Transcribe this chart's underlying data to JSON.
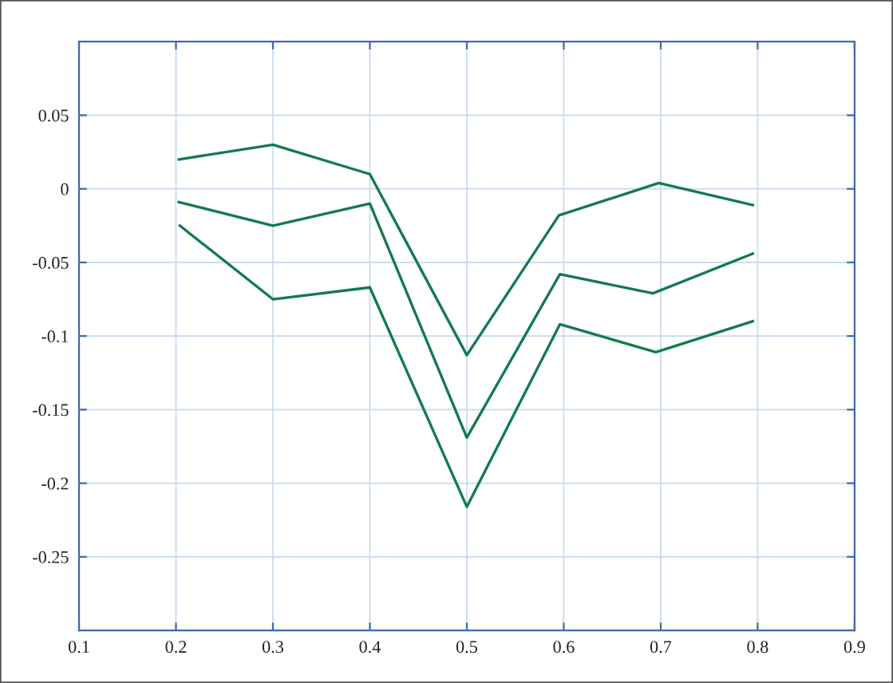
{
  "chart_data": {
    "type": "line",
    "series": [
      {
        "color": "#137a4f",
        "x": [
          0.203,
          0.3,
          0.4,
          0.5,
          0.595,
          0.698,
          0.795
        ],
        "values": [
          0.02,
          0.03,
          0.01,
          -0.113,
          -0.018,
          0.004,
          -0.011
        ]
      },
      {
        "color": "#137a4f",
        "x": [
          0.203,
          0.3,
          0.4,
          0.5,
          0.596,
          0.692,
          0.795
        ],
        "values": [
          -0.009,
          -0.025,
          -0.01,
          -0.169,
          -0.058,
          -0.071,
          -0.044
        ]
      },
      {
        "color": "#137a4f",
        "x": [
          0.204,
          0.3,
          0.4,
          0.5,
          0.596,
          0.695,
          0.795
        ],
        "values": [
          -0.025,
          -0.075,
          -0.067,
          -0.216,
          -0.092,
          -0.111,
          -0.09
        ]
      }
    ],
    "xlim": [
      0.1,
      0.9
    ],
    "ylim": [
      -0.3,
      0.1
    ],
    "xticks": [
      0.1,
      0.2,
      0.3,
      0.4,
      0.5,
      0.6,
      0.7,
      0.8,
      0.9
    ],
    "yticks": [
      -0.25,
      -0.2,
      -0.15,
      -0.1,
      -0.05,
      0,
      0.05
    ],
    "grid": true,
    "marker": "none",
    "line_style": "solid"
  }
}
